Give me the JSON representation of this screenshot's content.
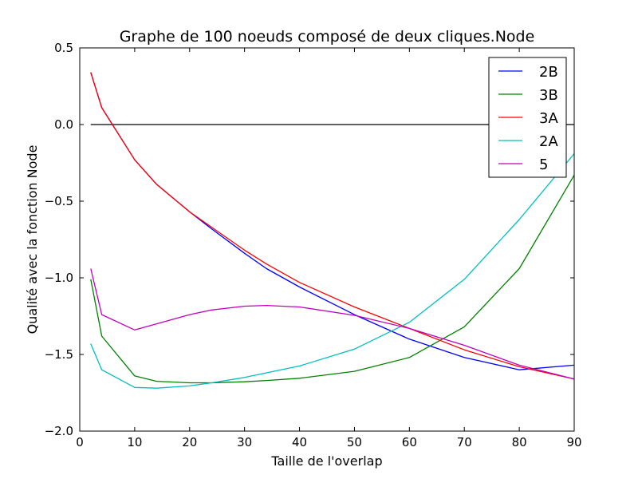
{
  "chart_data": {
    "type": "line",
    "title": "Graphe de 100 noeuds composé de deux cliques.Node",
    "xlabel": "Taille de l'overlap",
    "ylabel": "Qualité avec la fonction Node",
    "xlim": [
      0,
      90
    ],
    "ylim": [
      -2.0,
      0.5
    ],
    "xticks": [
      0,
      10,
      20,
      30,
      40,
      50,
      60,
      70,
      80,
      90
    ],
    "xtick_labels": [
      "0",
      "10",
      "20",
      "30",
      "40",
      "50",
      "60",
      "70",
      "80",
      "90"
    ],
    "yticks": [
      0.5,
      0.0,
      -0.5,
      -1.0,
      -1.5,
      -2.0
    ],
    "ytick_labels": [
      "0.5",
      "0.0",
      "−0.5",
      "−1.0",
      "−1.5",
      "−2.0"
    ],
    "reference_line": {
      "y": 0.0,
      "x": [
        2,
        90
      ],
      "color": "#000000"
    },
    "legend_position": "top-right",
    "grid": false,
    "series": [
      {
        "name": "2B",
        "color": "#0000ff",
        "x": [
          2,
          4,
          10,
          14,
          20,
          24,
          30,
          34,
          40,
          50,
          60,
          70,
          80,
          90
        ],
        "y": [
          0.34,
          0.11,
          -0.23,
          -0.39,
          -0.57,
          -0.68,
          -0.84,
          -0.94,
          -1.06,
          -1.24,
          -1.4,
          -1.52,
          -1.6,
          -1.57
        ]
      },
      {
        "name": "3B",
        "color": "#008000",
        "x": [
          2,
          4,
          10,
          14,
          20,
          24,
          30,
          34,
          40,
          50,
          60,
          70,
          80,
          90
        ],
        "y": [
          -1.01,
          -1.38,
          -1.64,
          -1.675,
          -1.685,
          -1.685,
          -1.678,
          -1.67,
          -1.655,
          -1.61,
          -1.52,
          -1.32,
          -0.94,
          -0.33
        ]
      },
      {
        "name": "3A",
        "color": "#ff0000",
        "x": [
          2,
          4,
          10,
          14,
          20,
          24,
          30,
          34,
          40,
          50,
          60,
          70,
          80,
          90
        ],
        "y": [
          0.34,
          0.11,
          -0.23,
          -0.39,
          -0.57,
          -0.67,
          -0.82,
          -0.91,
          -1.03,
          -1.19,
          -1.33,
          -1.47,
          -1.58,
          -1.66
        ]
      },
      {
        "name": "2A",
        "color": "#00bfbf",
        "x": [
          2,
          4,
          10,
          14,
          20,
          24,
          30,
          34,
          40,
          50,
          60,
          70,
          80,
          90
        ],
        "y": [
          -1.43,
          -1.6,
          -1.715,
          -1.72,
          -1.705,
          -1.685,
          -1.65,
          -1.62,
          -1.575,
          -1.465,
          -1.29,
          -1.01,
          -0.62,
          -0.19
        ]
      },
      {
        "name": "5",
        "color": "#bf00bf",
        "x": [
          2,
          4,
          10,
          14,
          20,
          24,
          30,
          34,
          40,
          50,
          60,
          70,
          80,
          90
        ],
        "y": [
          -0.94,
          -1.24,
          -1.34,
          -1.3,
          -1.24,
          -1.21,
          -1.185,
          -1.18,
          -1.19,
          -1.245,
          -1.33,
          -1.44,
          -1.57,
          -1.66
        ]
      }
    ]
  }
}
